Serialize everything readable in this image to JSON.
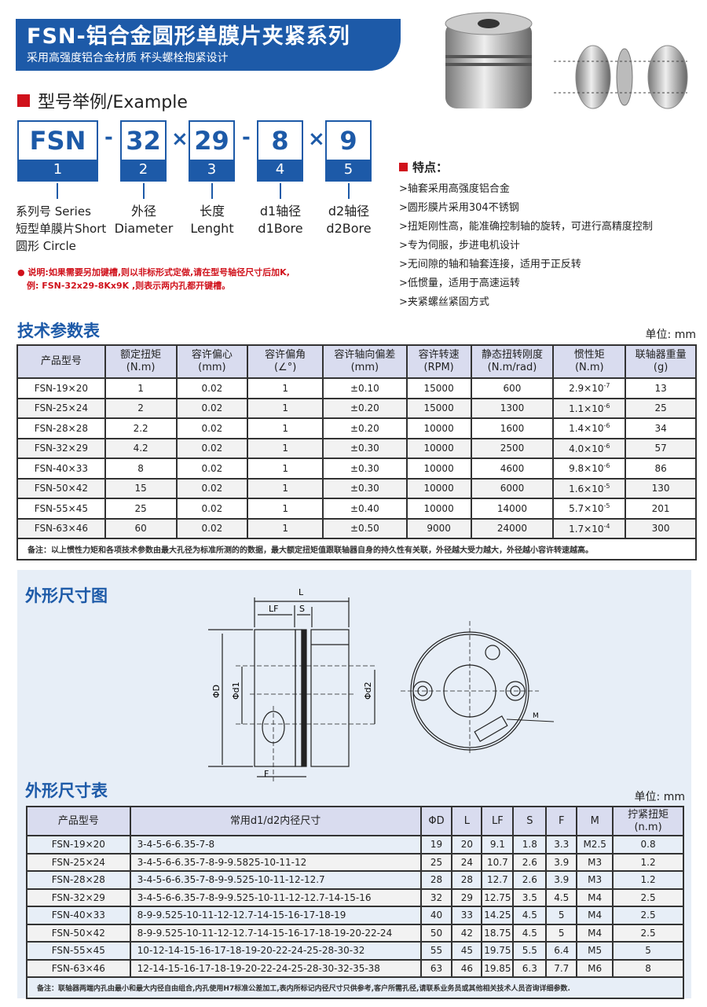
{
  "header": {
    "title": "FSN-铝合金圆形单膜片夹紧系列",
    "subtitle": "采用高强度铝合金材质 杯头螺栓抱紧设计"
  },
  "example": {
    "heading": "型号举例/Example",
    "parts": [
      {
        "value": "FSN",
        "index": "1",
        "label": "系列号 Series\n短型单膜片Short\n圆形 Circle"
      },
      {
        "value": "32",
        "index": "2",
        "label": "外径\nDiameter"
      },
      {
        "value": "29",
        "index": "3",
        "label": "长度\nLenght"
      },
      {
        "value": "8",
        "index": "4",
        "label": "d1轴径\nd1Bore"
      },
      {
        "value": "9",
        "index": "5",
        "label": "d2轴径\nd2Bore"
      }
    ],
    "separators": [
      "-",
      "×",
      "-",
      "×"
    ],
    "note_line1": "● 说明:如果需要另加键槽,则以非标形式定做,请在型号轴径尺寸后加K,",
    "note_line2": "例: FSN-32x29-8Kx9K ,则表示两内孔都开键槽。"
  },
  "features": {
    "heading": "特点：",
    "items": [
      ">轴套采用高强度铝合金",
      ">圆形膜片采用304不锈钢",
      ">扭矩刚性高，能准确控制轴的旋转，可进行高精度控制",
      ">专为伺服，步进电机设计",
      ">无间隙的轴和轴套连接，适用于正反转",
      ">低惯量，适用于高速运转",
      ">夹紧螺丝紧固方式"
    ]
  },
  "tech_table": {
    "title": "技术参数表",
    "unit": "单位: mm",
    "headers": [
      [
        "产品型号",
        ""
      ],
      [
        "额定扭矩",
        "(N.m)"
      ],
      [
        "容许偏心",
        "(mm)"
      ],
      [
        "容许偏角",
        "(∠°)"
      ],
      [
        "容许轴向偏差",
        "(mm)"
      ],
      [
        "容许转速",
        "(RPM)"
      ],
      [
        "静态扭转刚度",
        "(N.m/rad)"
      ],
      [
        "惯性矩",
        "(N.m)"
      ],
      [
        "联轴器重量",
        "(g)"
      ]
    ],
    "rows": [
      [
        "FSN-19×20",
        "1",
        "0.02",
        "1",
        "±0.10",
        "15000",
        "600",
        "2.9×10",
        "-7",
        "13"
      ],
      [
        "FSN-25×24",
        "2",
        "0.02",
        "1",
        "±0.20",
        "15000",
        "1300",
        "1.1×10",
        "-6",
        "25"
      ],
      [
        "FSN-28×28",
        "2.2",
        "0.02",
        "1",
        "±0.20",
        "10000",
        "1600",
        "1.4×10",
        "-6",
        "34"
      ],
      [
        "FSN-32×29",
        "4.2",
        "0.02",
        "1",
        "±0.30",
        "10000",
        "2500",
        "4.0×10",
        "-6",
        "57"
      ],
      [
        "FSN-40×33",
        "8",
        "0.02",
        "1",
        "±0.30",
        "10000",
        "4600",
        "9.8×10",
        "-6",
        "86"
      ],
      [
        "FSN-50×42",
        "15",
        "0.02",
        "1",
        "±0.30",
        "10000",
        "6000",
        "1.6×10",
        "-5",
        "130"
      ],
      [
        "FSN-55×45",
        "25",
        "0.02",
        "1",
        "±0.40",
        "10000",
        "14000",
        "5.7×10",
        "-5",
        "201"
      ],
      [
        "FSN-63×46",
        "60",
        "0.02",
        "1",
        "±0.50",
        "9000",
        "24000",
        "1.7×10",
        "-4",
        "300"
      ]
    ],
    "note": "备注：以上惯性力矩和各项技术参数由最大孔径为标准所测的的数据，最大额定扭矩值跟联轴器自身的持久性有关联，外径越大受力越大，外径越小容许转速越高。"
  },
  "drawing": {
    "title": "外形尺寸图",
    "labels": {
      "L": "L",
      "LF": "LF",
      "S": "S",
      "D": "ΦD",
      "d1": "Φd1",
      "d2": "Φd2",
      "F": "F",
      "M": "M"
    }
  },
  "dim_table": {
    "title": "外形尺寸表",
    "unit": "单位: mm",
    "headers": [
      "产品型号",
      "常用d1/d2内径尺寸",
      "ΦD",
      "L",
      "LF",
      "S",
      "F",
      "M",
      "拧紧扭矩\n(n.m)"
    ],
    "rows": [
      [
        "FSN-19×20",
        "3-4-5-6-6.35-7-8",
        "19",
        "20",
        "9.1",
        "1.8",
        "3.3",
        "M2.5",
        "0.8"
      ],
      [
        "FSN-25×24",
        "3-4-5-6-6.35-7-8-9-9.5825-10-11-12",
        "25",
        "24",
        "10.7",
        "2.6",
        "3.9",
        "M3",
        "1.2"
      ],
      [
        "FSN-28×28",
        "3-4-5-6-6.35-7-8-9-9.525-10-11-12-12.7",
        "28",
        "28",
        "12.7",
        "2.6",
        "3.9",
        "M3",
        "1.2"
      ],
      [
        "FSN-32×29",
        "3-4-5-6-6.35-7-8-9-9.525-10-11-12-12.7-14-15-16",
        "32",
        "29",
        "12.75",
        "3.5",
        "4.5",
        "M4",
        "2.5"
      ],
      [
        "FSN-40×33",
        "8-9-9.525-10-11-12-12.7-14-15-16-17-18-19",
        "40",
        "33",
        "14.25",
        "4.5",
        "5",
        "M4",
        "2.5"
      ],
      [
        "FSN-50×42",
        "8-9-9.525-10-11-12-12.7-14-15-16-17-18-19-20-22-24",
        "50",
        "42",
        "18.75",
        "4.5",
        "5",
        "M4",
        "2.5"
      ],
      [
        "FSN-55×45",
        "10-12-14-15-16-17-18-19-20-22-24-25-28-30-32",
        "55",
        "45",
        "19.75",
        "5.5",
        "6.4",
        "M5",
        "5"
      ],
      [
        "FSN-63×46",
        "12-14-15-16-17-18-19-20-22-24-25-28-30-32-35-38",
        "63",
        "46",
        "19.85",
        "6.3",
        "7.7",
        "M6",
        "8"
      ]
    ],
    "note": "备注：联轴器两端内孔由最小和最大内径自由组合,内孔使用H7标准公差加工,表内所标记内径尺寸只供参考,客户所需孔径,请联系业务员或其他相关技术人员咨询详细参数."
  },
  "colors": {
    "brand_blue": "#1d5aa8",
    "accent_red": "#d0111b",
    "header_bg": "#d9dcef"
  }
}
